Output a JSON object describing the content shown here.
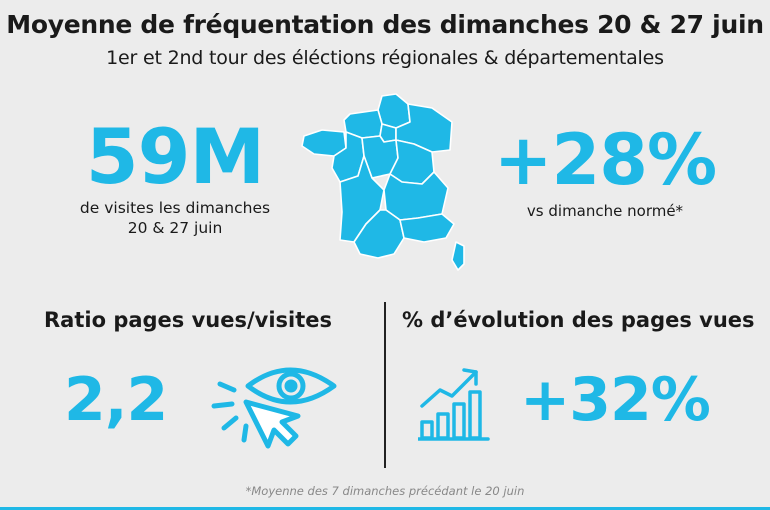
{
  "header": {
    "title": "Moyenne de fréquentation des dimanches 20 & 27 juin",
    "subtitle": "1er et 2nd tour des éléctions régionales & départementales"
  },
  "visits": {
    "value": "59M",
    "caption_line1": "de visites  les dimanches",
    "caption_line2": "20 & 27 juin"
  },
  "growth": {
    "value": "+28%",
    "caption": "vs dimanche normé*"
  },
  "ratio": {
    "title": "Ratio pages vues/visites",
    "value": "2,2"
  },
  "evolution": {
    "title": "% d’évolution des pages vues",
    "value": "+32%"
  },
  "footnote": "*Moyenne des 7 dimanches précédant le 20 juin",
  "icons": {
    "map": "france-map-icon",
    "eye": "eye-click-icon",
    "chart": "growth-chart-icon"
  },
  "colors": {
    "accent": "#1fb8e6",
    "text": "#1a1a1a",
    "background": "#ececec"
  }
}
